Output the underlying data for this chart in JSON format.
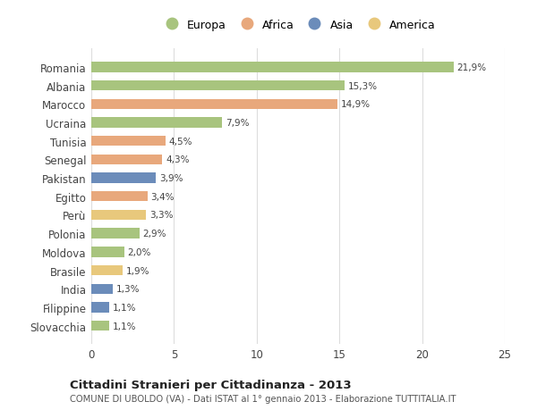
{
  "categories": [
    "Romania",
    "Albania",
    "Marocco",
    "Ucraina",
    "Tunisia",
    "Senegal",
    "Pakistan",
    "Egitto",
    "Perù",
    "Polonia",
    "Moldova",
    "Brasile",
    "India",
    "Filippine",
    "Slovacchia"
  ],
  "values": [
    21.9,
    15.3,
    14.9,
    7.9,
    4.5,
    4.3,
    3.9,
    3.4,
    3.3,
    2.9,
    2.0,
    1.9,
    1.3,
    1.1,
    1.1
  ],
  "labels": [
    "21,9%",
    "15,3%",
    "14,9%",
    "7,9%",
    "4,5%",
    "4,3%",
    "3,9%",
    "3,4%",
    "3,3%",
    "2,9%",
    "2,0%",
    "1,9%",
    "1,3%",
    "1,1%",
    "1,1%"
  ],
  "continents": [
    "Europa",
    "Europa",
    "Africa",
    "Europa",
    "Africa",
    "Africa",
    "Asia",
    "Africa",
    "America",
    "Europa",
    "Europa",
    "America",
    "Asia",
    "Asia",
    "Europa"
  ],
  "colors": {
    "Europa": "#a8c47e",
    "Africa": "#e8a87c",
    "Asia": "#6b8cba",
    "America": "#e8c87c"
  },
  "legend_order": [
    "Europa",
    "Africa",
    "Asia",
    "America"
  ],
  "title": "Cittadini Stranieri per Cittadinanza - 2013",
  "subtitle": "COMUNE DI UBOLDO (VA) - Dati ISTAT al 1° gennaio 2013 - Elaborazione TUTTITALIA.IT",
  "xlim": [
    0,
    25
  ],
  "xticks": [
    0,
    5,
    10,
    15,
    20,
    25
  ],
  "background_color": "#ffffff",
  "grid_color": "#dddddd",
  "bar_height": 0.55
}
